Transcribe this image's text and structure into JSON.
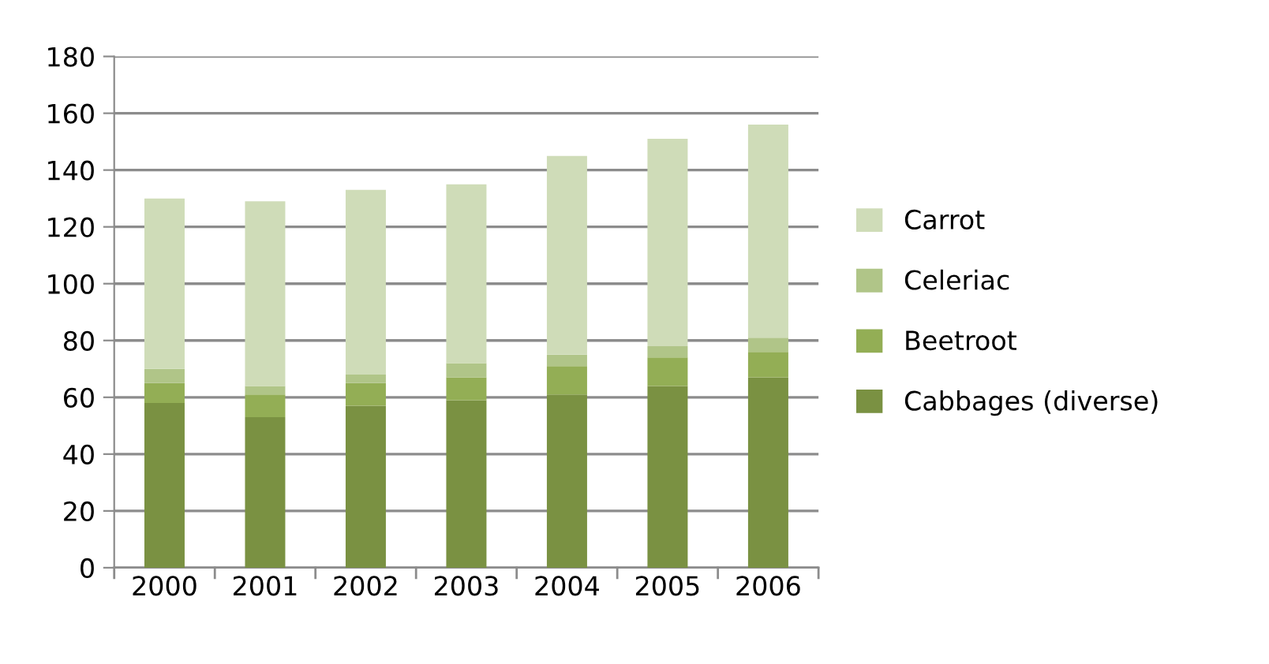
{
  "chart_data": {
    "type": "bar",
    "stacked": true,
    "categories": [
      "2000",
      "2001",
      "2002",
      "2003",
      "2004",
      "2005",
      "2006"
    ],
    "series": [
      {
        "name": "Cabbages (diverse)",
        "color": "#7a9142",
        "values": [
          58,
          53,
          57,
          59,
          61,
          64,
          67
        ]
      },
      {
        "name": "Beetroot",
        "color": "#93ae55",
        "values": [
          7,
          8,
          8,
          8,
          10,
          10,
          9
        ]
      },
      {
        "name": "Celeriac",
        "color": "#b0c588",
        "values": [
          5,
          3,
          3,
          5,
          4,
          4,
          5
        ]
      },
      {
        "name": "Carrot",
        "color": "#cfdcb8",
        "values": [
          60,
          65,
          65,
          63,
          70,
          73,
          75
        ]
      }
    ],
    "ylim": [
      0,
      180
    ],
    "yticks": [
      0,
      20,
      40,
      60,
      80,
      100,
      120,
      140,
      160,
      180
    ],
    "grid": "y",
    "legend": "right"
  }
}
